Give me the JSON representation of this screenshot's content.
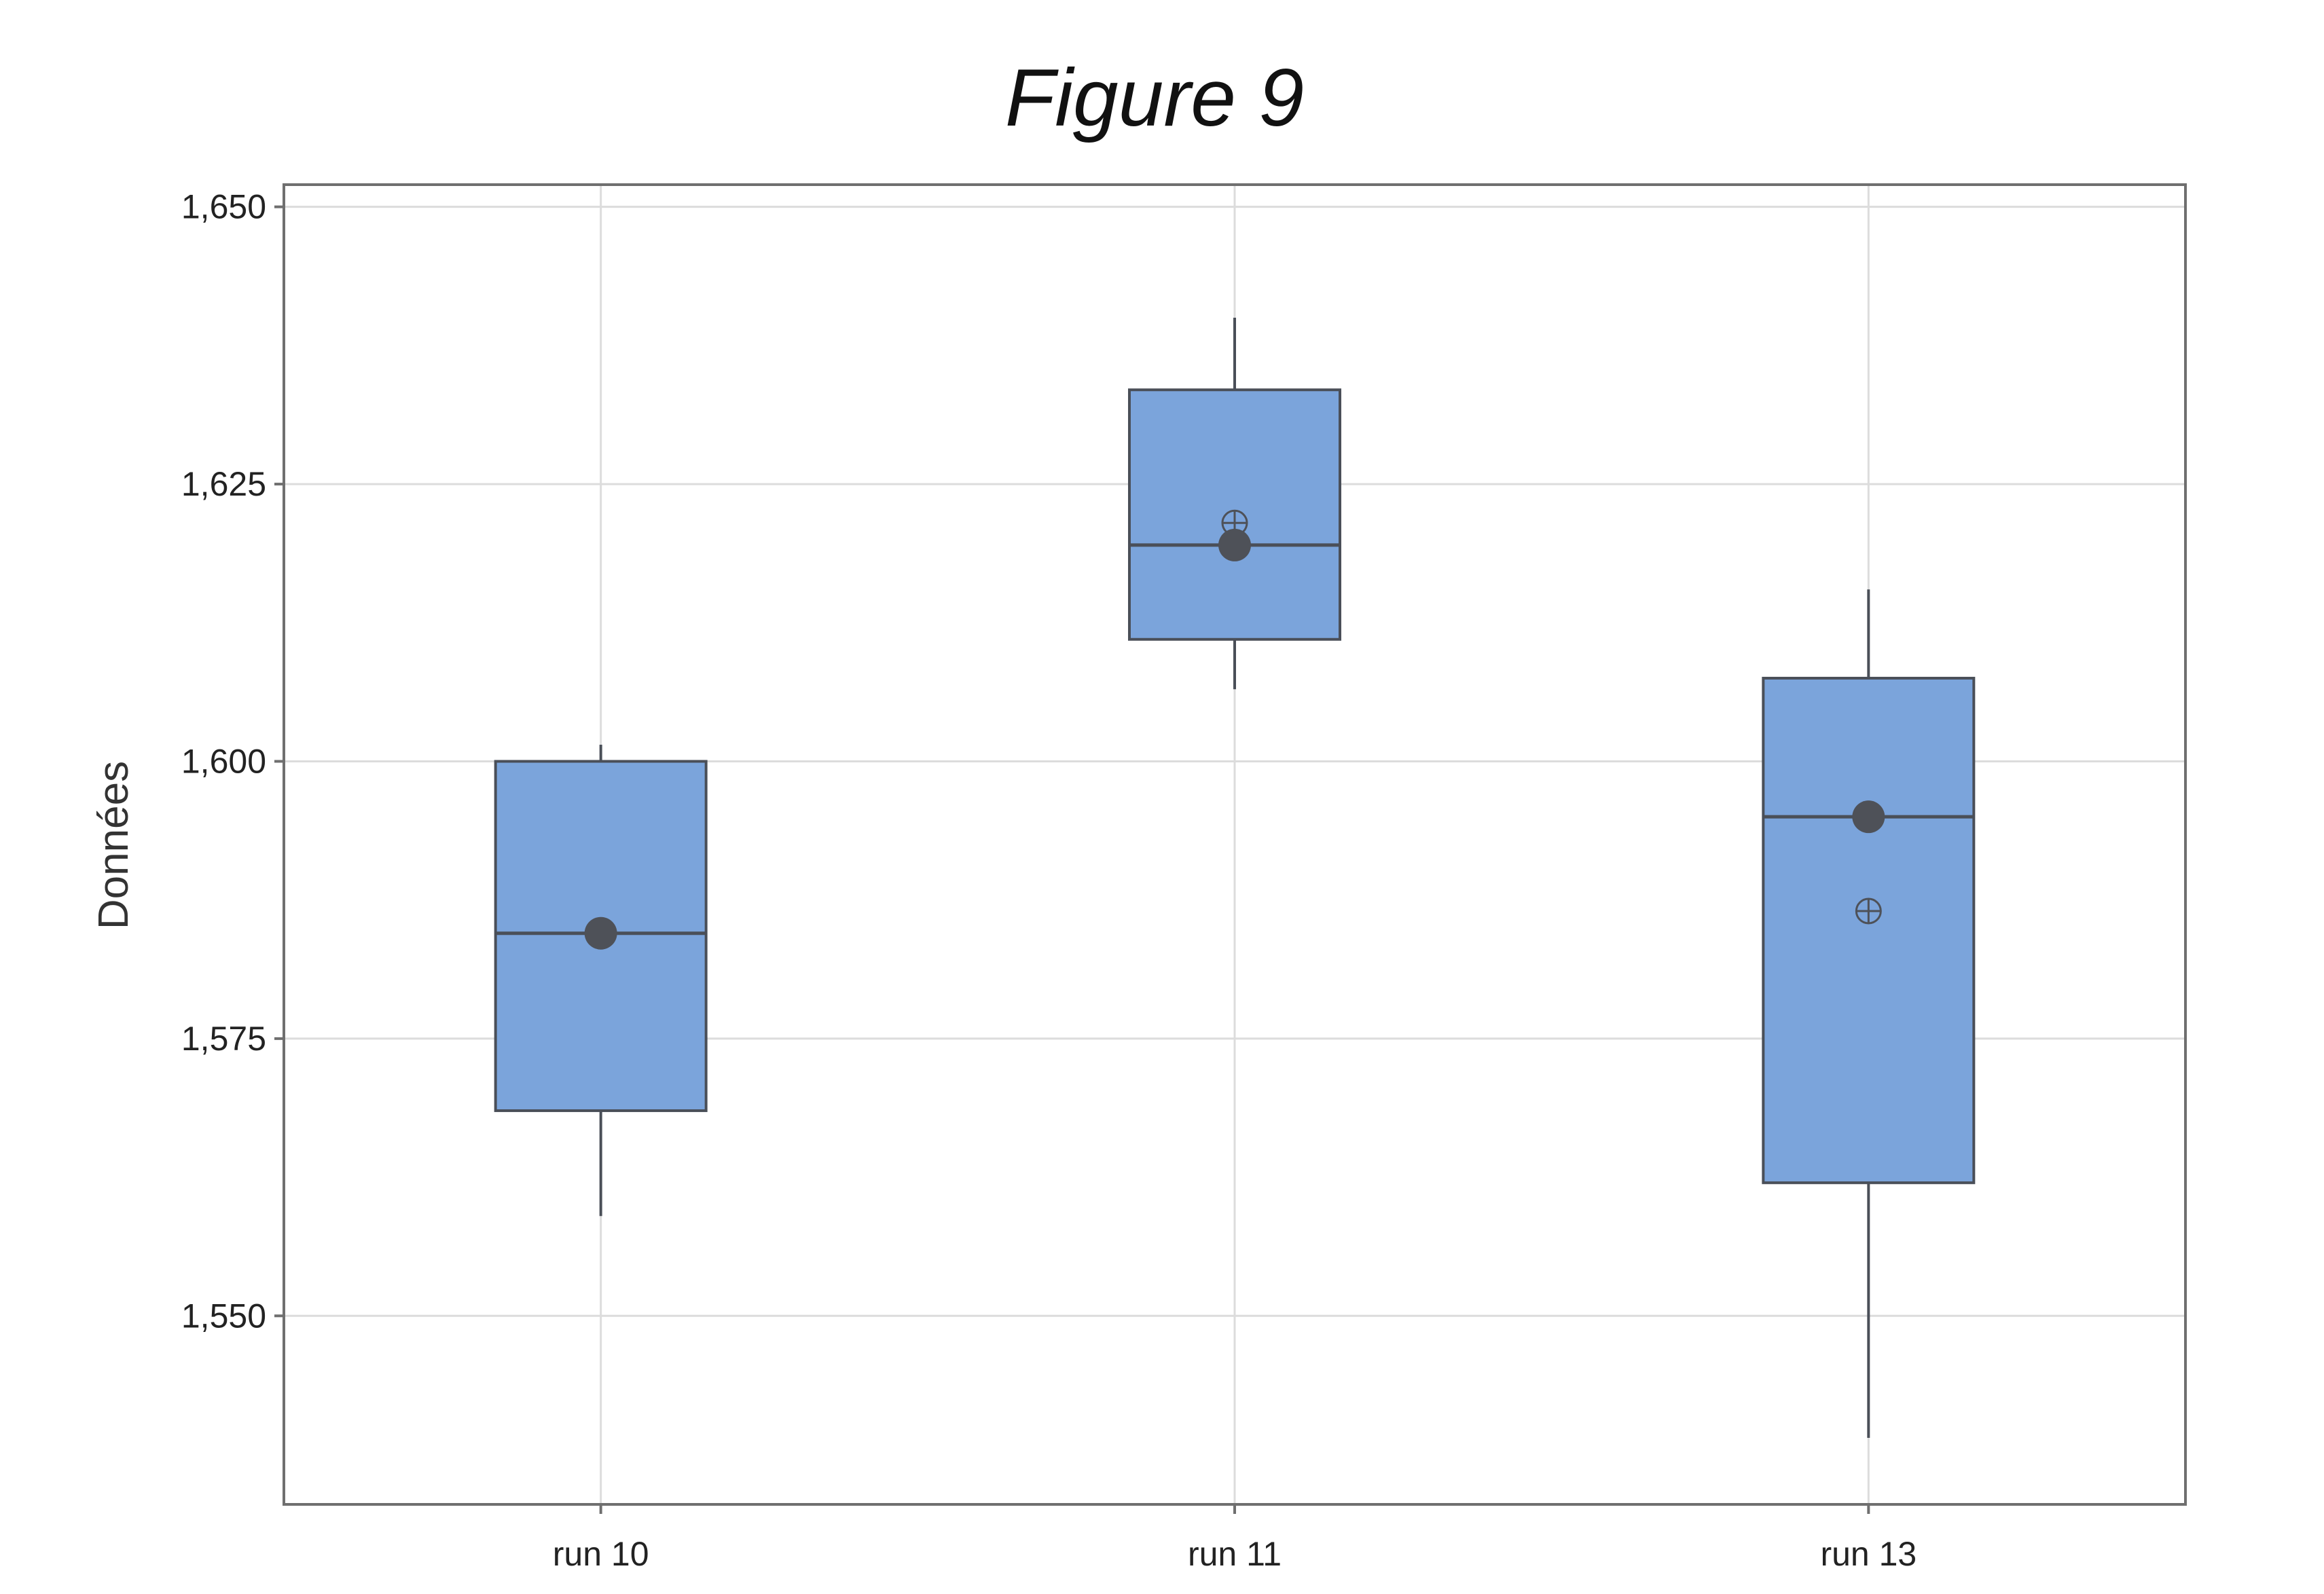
{
  "chart_data": {
    "type": "boxplot",
    "title": "Figure 9",
    "xlabel": "",
    "ylabel": "Données",
    "ylim": [
      1.533,
      1.652
    ],
    "yticks": [
      1.55,
      1.575,
      1.6,
      1.625,
      1.65
    ],
    "ytick_labels": [
      "1,550",
      "1,575",
      "1,600",
      "1,625",
      "1,650"
    ],
    "grid": true,
    "box_color": "#7ba4db",
    "edge_color": "#4a4f58",
    "marker_color": "#4e5158",
    "categories": [
      "run 10",
      "run 11",
      "run 13"
    ],
    "boxes": [
      {
        "label": "run 10",
        "whisker_low": 1.559,
        "q1": 1.5685,
        "median": 1.5845,
        "q3": 1.6,
        "whisker_high": 1.6015,
        "median_marker": 1.5845,
        "mean": 1.5845
      },
      {
        "label": "run 11",
        "whisker_low": 1.6065,
        "q1": 1.611,
        "median": 1.6195,
        "q3": 1.6335,
        "whisker_high": 1.64,
        "median_marker": 1.6195,
        "mean": 1.6215
      },
      {
        "label": "run 13",
        "whisker_low": 1.539,
        "q1": 1.562,
        "median": 1.595,
        "q3": 1.6075,
        "whisker_high": 1.6155,
        "median_marker": 1.595,
        "mean": 1.5865
      }
    ]
  }
}
